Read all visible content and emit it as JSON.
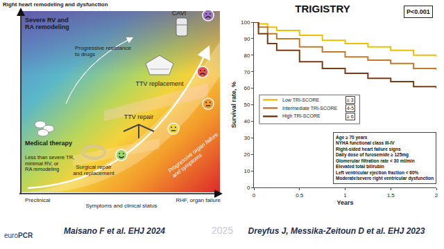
{
  "diagram": {
    "y_axis_label": "Right heart remodeling and dysfunction",
    "x_axis_labels": [
      "Preclinical",
      "Symptoms and clinical status",
      "RHF, organ failure"
    ],
    "labels": {
      "severe": [
        "Severe RV and",
        "RA remodeling"
      ],
      "resistance": [
        "Progressive resistance",
        "to drugs"
      ],
      "ttv_replacement": [
        "TTV replacement"
      ],
      "cavi": [
        "CAVI"
      ],
      "ttv_repair": [
        "TTV repair"
      ],
      "surgical": [
        "Surgical repair",
        "and replacement"
      ],
      "medical": [
        "Medical therapy"
      ],
      "mild": [
        "Less than severe TR,",
        "minimal RV, or",
        "RA remodeling"
      ],
      "organ_failure": [
        "Progressive organ failure",
        "and symptoms"
      ]
    }
  },
  "chart_data": {
    "type": "line",
    "title": "TRIGISTRY",
    "p_value": "P<0.001",
    "x_label": "Years",
    "y_label": "Survival rate, %",
    "x": [
      0,
      0.05,
      0.15,
      0.25,
      0.5,
      0.75,
      1,
      1.25,
      1.5,
      1.75,
      2
    ],
    "series": [
      {
        "name": "Low TRI-SCORE",
        "score": "≤ 3",
        "color": "#f0c000",
        "values": [
          100,
          99,
          97,
          95,
          92,
          89,
          87,
          85,
          83,
          80,
          79
        ]
      },
      {
        "name": "Intermediate TRI-SCORE",
        "score": "4-5",
        "color": "#c8782a",
        "values": [
          100,
          97,
          93,
          90,
          85,
          82,
          79,
          77,
          75,
          72,
          71
        ]
      },
      {
        "name": "High TRI-SCORE",
        "score": "≥ 6",
        "color": "#7a3b12",
        "values": [
          100,
          93,
          87,
          83,
          76,
          72,
          69,
          66,
          64,
          61,
          60
        ]
      }
    ],
    "criteria": [
      "Age ≥ 70 years",
      "NYHA functional class III-IV",
      "Right-sided heart failure signs",
      "Daily dose of furosemide ≥ 125mg",
      "Glomerular filtration rate < 30 ml/min",
      "Elevated total bilirubin",
      "Left ventricular ejection fraction < 60%",
      "Moderate/severe right ventricular dysfunction"
    ],
    "xlim": [
      0,
      2
    ],
    "xticks": [
      0,
      0.5,
      1,
      1.5,
      2
    ],
    "ylim": [
      0,
      100
    ],
    "yticks": [
      0,
      10,
      20,
      30,
      40,
      50,
      60,
      70,
      80,
      90,
      100
    ],
    "grid": false,
    "legend": "lower left",
    "line_style": "step"
  },
  "footer": {
    "logo": [
      "euro",
      "PCR"
    ],
    "year": "2025",
    "citations": [
      "Maisano F et al. EHJ 2024",
      "Dreyfus J, Messika-Zeitoun D et al. EHJ 2023"
    ]
  }
}
